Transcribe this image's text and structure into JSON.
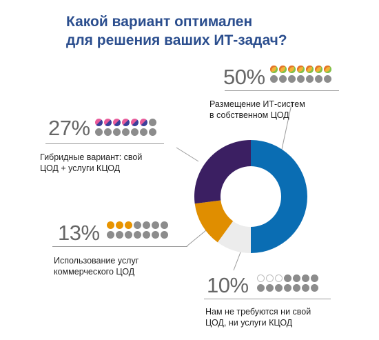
{
  "title": [
    "Какой вариант оптимален",
    "для решения ваших ИТ-задач?"
  ],
  "chart_data": {
    "type": "pie",
    "title": "Какой вариант оптимален для решения ваших ИТ-задач?",
    "donut": true,
    "slices": [
      {
        "label": "Размещение ИТ-систем в собственном ЦОД",
        "value": 50,
        "display": "50%",
        "color": "#0a6db3",
        "dots_filled": 7,
        "dot_style": "blue",
        "desc_lines": [
          "Размещение ИТ-систем",
          "в собственном ЦОД"
        ]
      },
      {
        "label": "Нам не требуются ни свой ЦОД, ни услуги КЦОД",
        "value": 10,
        "display": "10%",
        "color": "#ececec",
        "dots_filled": 3,
        "dot_style": "white",
        "desc_lines": [
          "Нам не требуются ни свой",
          "ЦОД, ни услуги КЦОД"
        ]
      },
      {
        "label": "Использование услуг коммерческого ЦОД",
        "value": 13,
        "display": "13%",
        "color": "#e08e00",
        "dots_filled": 3,
        "dot_style": "orange",
        "desc_lines": [
          "Использование услуг",
          "коммерческого ЦОД"
        ]
      },
      {
        "label": "Гибридные вариант: свой ЦОД + услуги КЦОД",
        "value": 27,
        "display": "27%",
        "color": "#3b1f62",
        "dots_filled": 6,
        "dot_style": "purple",
        "desc_lines": [
          "Гибридные вариант: свой",
          "ЦОД + услуги КЦОД"
        ]
      }
    ],
    "legend": "callouts"
  }
}
